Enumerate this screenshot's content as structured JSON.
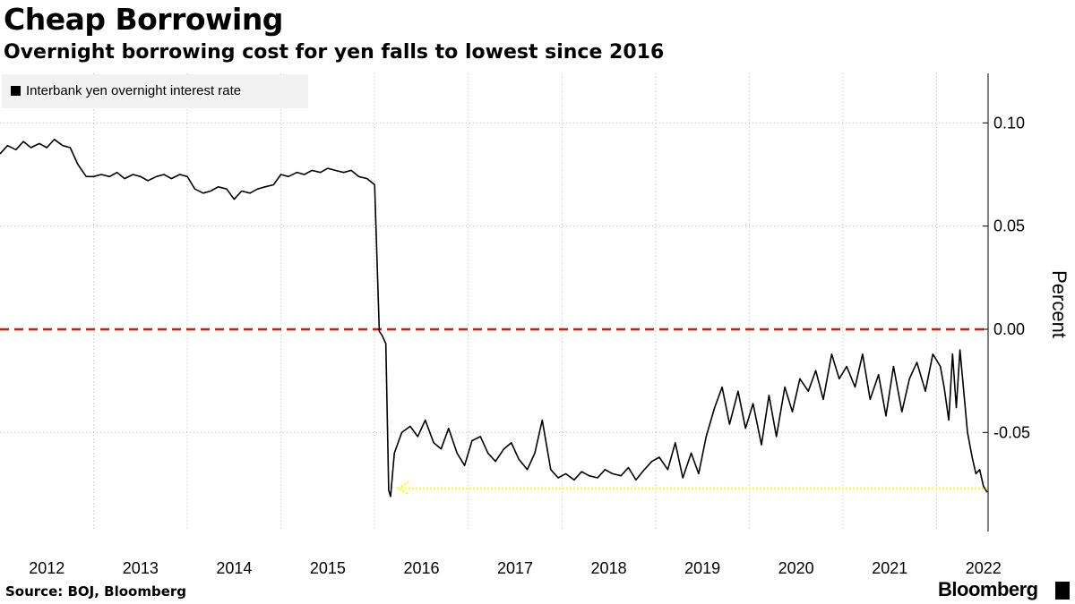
{
  "header": {
    "title": "Cheap Borrowing",
    "subtitle": "Overnight borrowing cost for yen falls to lowest since 2016"
  },
  "footer": {
    "source": "Source: BOJ, Bloomberg",
    "brand": "Bloomberg"
  },
  "colors": {
    "series": "#000000",
    "zero_line": "#e3120b",
    "arrow": "#ffff00",
    "grid": "#bbbbbb",
    "legend_bg": "#f2f2f2"
  },
  "chart_data": {
    "type": "line",
    "title": "Cheap Borrowing",
    "subtitle": "Overnight borrowing cost for yen falls to lowest since 2016",
    "ylabel": "Percent",
    "xlabel": "",
    "x_ticks": [
      "2012",
      "2013",
      "2014",
      "2015",
      "2016",
      "2017",
      "2018",
      "2019",
      "2020",
      "2021",
      "2022"
    ],
    "y_ticks": [
      "0.10",
      "0.05",
      "0.00",
      "-0.05"
    ],
    "y_tick_values": [
      0.1,
      0.05,
      0.0,
      -0.05
    ],
    "ylim": [
      -0.098,
      0.124
    ],
    "xlim": [
      2012.0,
      2022.55
    ],
    "grid": true,
    "y_axis_position": "right",
    "legend_position": "top-left",
    "legend": [
      "Interbank yen overnight interest rate"
    ],
    "series": [
      {
        "name": "Interbank yen overnight interest rate",
        "points": [
          [
            2012.0,
            0.085
          ],
          [
            2012.08,
            0.089
          ],
          [
            2012.17,
            0.087
          ],
          [
            2012.25,
            0.091
          ],
          [
            2012.33,
            0.088
          ],
          [
            2012.42,
            0.09
          ],
          [
            2012.5,
            0.088
          ],
          [
            2012.58,
            0.092
          ],
          [
            2012.67,
            0.089
          ],
          [
            2012.75,
            0.088
          ],
          [
            2012.83,
            0.08
          ],
          [
            2012.92,
            0.074
          ],
          [
            2013.0,
            0.074
          ],
          [
            2013.08,
            0.075
          ],
          [
            2013.17,
            0.074
          ],
          [
            2013.25,
            0.076
          ],
          [
            2013.33,
            0.073
          ],
          [
            2013.42,
            0.075
          ],
          [
            2013.5,
            0.074
          ],
          [
            2013.58,
            0.072
          ],
          [
            2013.67,
            0.074
          ],
          [
            2013.75,
            0.075
          ],
          [
            2013.83,
            0.073
          ],
          [
            2013.92,
            0.075
          ],
          [
            2014.0,
            0.074
          ],
          [
            2014.08,
            0.068
          ],
          [
            2014.17,
            0.066
          ],
          [
            2014.25,
            0.067
          ],
          [
            2014.33,
            0.069
          ],
          [
            2014.42,
            0.068
          ],
          [
            2014.5,
            0.063
          ],
          [
            2014.58,
            0.067
          ],
          [
            2014.67,
            0.066
          ],
          [
            2014.75,
            0.068
          ],
          [
            2014.83,
            0.069
          ],
          [
            2014.92,
            0.07
          ],
          [
            2015.0,
            0.075
          ],
          [
            2015.08,
            0.074
          ],
          [
            2015.17,
            0.076
          ],
          [
            2015.25,
            0.075
          ],
          [
            2015.33,
            0.077
          ],
          [
            2015.42,
            0.076
          ],
          [
            2015.5,
            0.078
          ],
          [
            2015.58,
            0.077
          ],
          [
            2015.67,
            0.076
          ],
          [
            2015.75,
            0.077
          ],
          [
            2015.83,
            0.074
          ],
          [
            2015.92,
            0.073
          ],
          [
            2016.0,
            0.07
          ],
          [
            2016.05,
            -0.001
          ],
          [
            2016.08,
            -0.003
          ],
          [
            2016.12,
            -0.007
          ],
          [
            2016.15,
            -0.078
          ],
          [
            2016.17,
            -0.081
          ],
          [
            2016.21,
            -0.06
          ],
          [
            2016.29,
            -0.05
          ],
          [
            2016.38,
            -0.047
          ],
          [
            2016.46,
            -0.052
          ],
          [
            2016.54,
            -0.044
          ],
          [
            2016.63,
            -0.055
          ],
          [
            2016.71,
            -0.058
          ],
          [
            2016.79,
            -0.048
          ],
          [
            2016.88,
            -0.06
          ],
          [
            2016.96,
            -0.066
          ],
          [
            2017.04,
            -0.054
          ],
          [
            2017.13,
            -0.052
          ],
          [
            2017.21,
            -0.06
          ],
          [
            2017.29,
            -0.064
          ],
          [
            2017.38,
            -0.058
          ],
          [
            2017.46,
            -0.055
          ],
          [
            2017.54,
            -0.063
          ],
          [
            2017.63,
            -0.068
          ],
          [
            2017.71,
            -0.06
          ],
          [
            2017.79,
            -0.044
          ],
          [
            2017.88,
            -0.068
          ],
          [
            2017.96,
            -0.072
          ],
          [
            2018.04,
            -0.07
          ],
          [
            2018.13,
            -0.073
          ],
          [
            2018.21,
            -0.069
          ],
          [
            2018.29,
            -0.071
          ],
          [
            2018.38,
            -0.072
          ],
          [
            2018.46,
            -0.068
          ],
          [
            2018.54,
            -0.07
          ],
          [
            2018.63,
            -0.071
          ],
          [
            2018.71,
            -0.067
          ],
          [
            2018.79,
            -0.073
          ],
          [
            2018.88,
            -0.068
          ],
          [
            2018.96,
            -0.064
          ],
          [
            2019.04,
            -0.062
          ],
          [
            2019.13,
            -0.068
          ],
          [
            2019.21,
            -0.055
          ],
          [
            2019.29,
            -0.072
          ],
          [
            2019.38,
            -0.06
          ],
          [
            2019.46,
            -0.07
          ],
          [
            2019.54,
            -0.052
          ],
          [
            2019.63,
            -0.038
          ],
          [
            2019.71,
            -0.028
          ],
          [
            2019.79,
            -0.046
          ],
          [
            2019.88,
            -0.03
          ],
          [
            2019.96,
            -0.048
          ],
          [
            2020.04,
            -0.036
          ],
          [
            2020.13,
            -0.056
          ],
          [
            2020.21,
            -0.032
          ],
          [
            2020.29,
            -0.052
          ],
          [
            2020.38,
            -0.028
          ],
          [
            2020.46,
            -0.04
          ],
          [
            2020.54,
            -0.024
          ],
          [
            2020.63,
            -0.03
          ],
          [
            2020.71,
            -0.02
          ],
          [
            2020.79,
            -0.034
          ],
          [
            2020.88,
            -0.012
          ],
          [
            2020.96,
            -0.024
          ],
          [
            2021.04,
            -0.018
          ],
          [
            2021.13,
            -0.028
          ],
          [
            2021.21,
            -0.012
          ],
          [
            2021.29,
            -0.034
          ],
          [
            2021.38,
            -0.022
          ],
          [
            2021.46,
            -0.042
          ],
          [
            2021.54,
            -0.018
          ],
          [
            2021.63,
            -0.04
          ],
          [
            2021.71,
            -0.024
          ],
          [
            2021.79,
            -0.016
          ],
          [
            2021.88,
            -0.03
          ],
          [
            2021.96,
            -0.012
          ],
          [
            2022.04,
            -0.018
          ],
          [
            2022.08,
            -0.028
          ],
          [
            2022.13,
            -0.044
          ],
          [
            2022.17,
            -0.012
          ],
          [
            2022.21,
            -0.038
          ],
          [
            2022.25,
            -0.01
          ],
          [
            2022.29,
            -0.03
          ],
          [
            2022.33,
            -0.05
          ],
          [
            2022.38,
            -0.062
          ],
          [
            2022.42,
            -0.07
          ],
          [
            2022.46,
            -0.068
          ],
          [
            2022.5,
            -0.076
          ],
          [
            2022.54,
            -0.079
          ]
        ]
      }
    ],
    "reference_lines": [
      {
        "y": 0.0,
        "style": "dashed",
        "color": "#e3120b"
      }
    ],
    "annotations": [
      {
        "type": "arrow",
        "from": [
          2022.54,
          -0.077
        ],
        "to": [
          2016.25,
          -0.077
        ],
        "color": "#ffff00",
        "style": "dotted"
      }
    ]
  }
}
